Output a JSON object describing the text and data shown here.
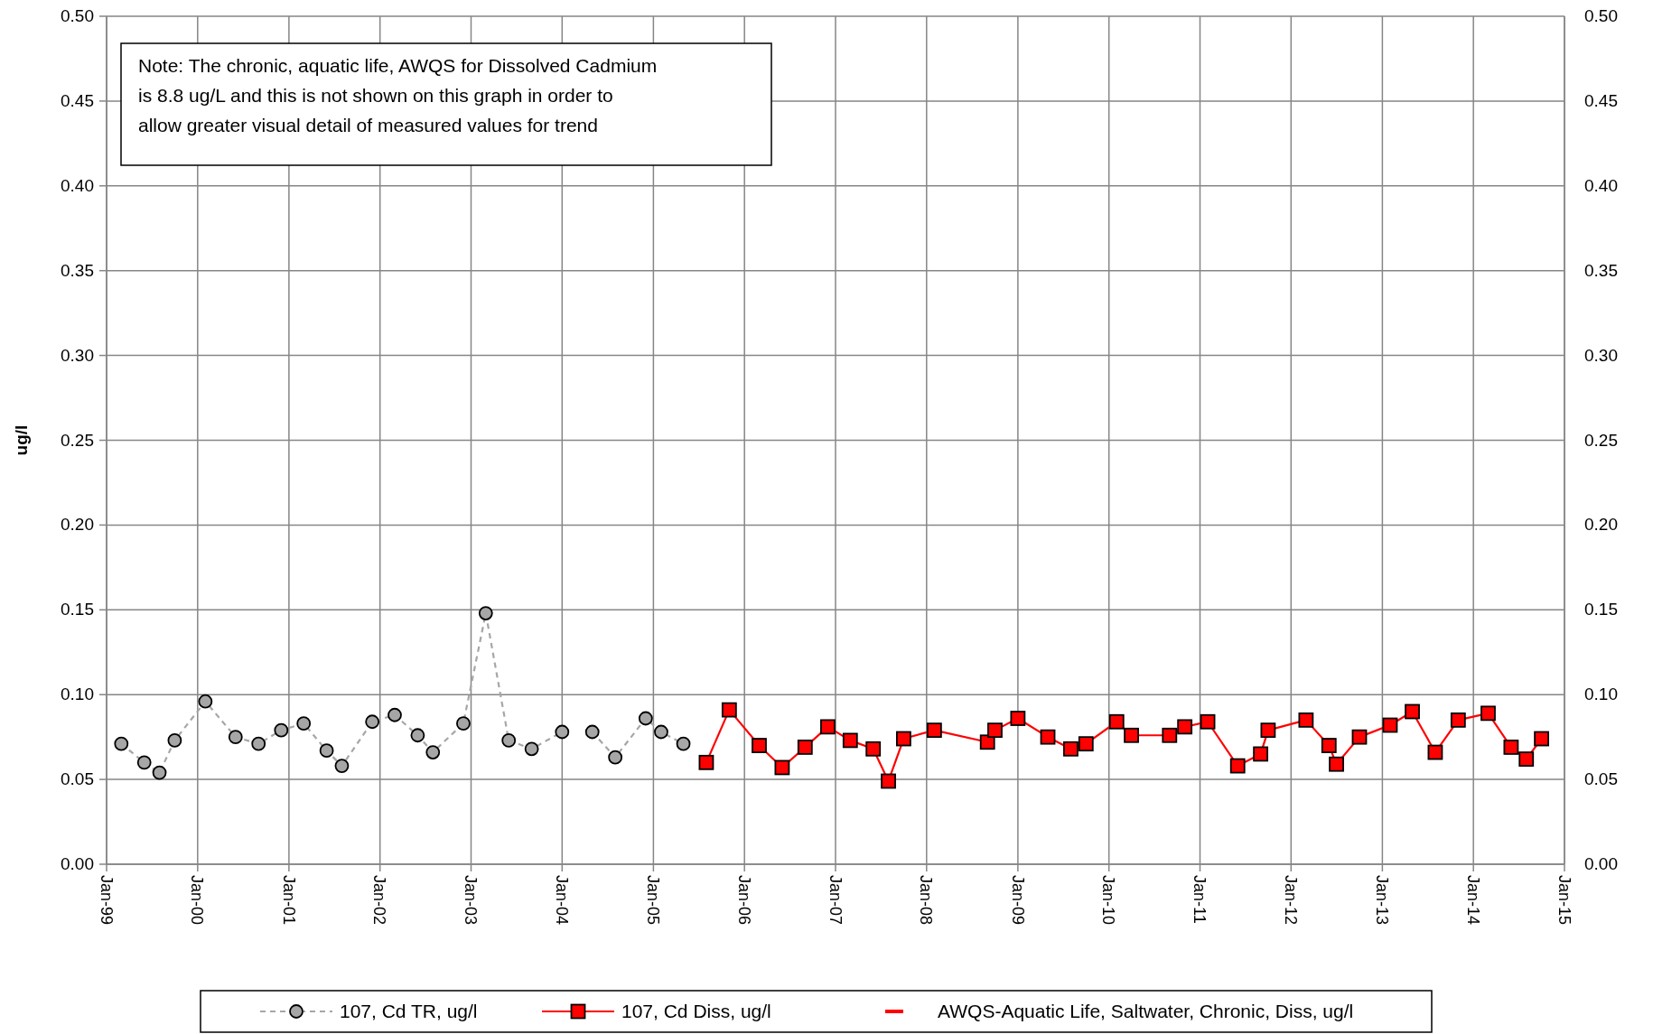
{
  "chart_data": {
    "type": "line",
    "ylabel": "ug/l",
    "annotations": [
      "Note: The chronic, aquatic life, AWQS for Dissolved Cadmium is 8.8 ug/L and this is not shown on this graph in order to allow greater visual detail of measured values for  trend"
    ],
    "xlim": [
      "1999-01",
      "2015-01"
    ],
    "xticks": [
      {
        "value": "1999-01",
        "label": "Jan-99"
      },
      {
        "value": "2000-01",
        "label": "Jan-00"
      },
      {
        "value": "2001-01",
        "label": "Jan-01"
      },
      {
        "value": "2002-01",
        "label": "Jan-02"
      },
      {
        "value": "2003-01",
        "label": "Jan-03"
      },
      {
        "value": "2004-01",
        "label": "Jan-04"
      },
      {
        "value": "2005-01",
        "label": "Jan-05"
      },
      {
        "value": "2006-01",
        "label": "Jan-06"
      },
      {
        "value": "2007-01",
        "label": "Jan-07"
      },
      {
        "value": "2008-01",
        "label": "Jan-08"
      },
      {
        "value": "2009-01",
        "label": "Jan-09"
      },
      {
        "value": "2010-01",
        "label": "Jan-10"
      },
      {
        "value": "2011-01",
        "label": "Jan-11"
      },
      {
        "value": "2012-01",
        "label": "Jan-12"
      },
      {
        "value": "2013-01",
        "label": "Jan-13"
      },
      {
        "value": "2014-01",
        "label": "Jan-14"
      },
      {
        "value": "2015-01",
        "label": "Jan-15"
      }
    ],
    "ylim": [
      0,
      0.5
    ],
    "yticks": [
      {
        "value": 0,
        "label": "0.00"
      },
      {
        "value": 0.05,
        "label": "0.05"
      },
      {
        "value": 0.1,
        "label": "0.10"
      },
      {
        "value": 0.15,
        "label": "0.15"
      },
      {
        "value": 0.2,
        "label": "0.20"
      },
      {
        "value": 0.25,
        "label": "0.25"
      },
      {
        "value": 0.3,
        "label": "0.30"
      },
      {
        "value": 0.35,
        "label": "0.35"
      },
      {
        "value": 0.4,
        "label": "0.40"
      },
      {
        "value": 0.45,
        "label": "0.45"
      },
      {
        "value": 0.5,
        "label": "0.50"
      }
    ],
    "y2lim": [
      0,
      0.5
    ],
    "y2ticks": [
      {
        "value": 0,
        "label": "0.00"
      },
      {
        "value": 0.05,
        "label": "0.05"
      },
      {
        "value": 0.1,
        "label": "0.10"
      },
      {
        "value": 0.15,
        "label": "0.15"
      },
      {
        "value": 0.2,
        "label": "0.20"
      },
      {
        "value": 0.25,
        "label": "0.25"
      },
      {
        "value": 0.3,
        "label": "0.30"
      },
      {
        "value": 0.35,
        "label": "0.35"
      },
      {
        "value": 0.4,
        "label": "0.40"
      },
      {
        "value": 0.45,
        "label": "0.45"
      },
      {
        "value": 0.5,
        "label": "0.50"
      }
    ],
    "grid": true,
    "legend": "bottom",
    "series": [
      {
        "name": "107, Cd TR, ug/l",
        "color": "#a6a6a6",
        "marker": "circle",
        "line_style": "dashed",
        "x": [
          "1999-03",
          "1999-06",
          "1999-08",
          "1999-10",
          "2000-02",
          "2000-06",
          "2000-09",
          "2000-12",
          "2001-03",
          "2001-06",
          "2001-08",
          "2001-12",
          "2002-03",
          "2002-06",
          "2002-08",
          "2002-12",
          "2003-03",
          "2003-06",
          "2003-09",
          "2004-01",
          "2004-03",
          "2004-05",
          "2004-08",
          "2004-12",
          "2005-02",
          "2005-05"
        ],
        "values": [
          0.071,
          0.06,
          0.054,
          0.073,
          0.096,
          0.075,
          0.071,
          0.079,
          0.083,
          0.067,
          0.058,
          0.084,
          0.088,
          0.076,
          0.066,
          0.083,
          0.148,
          0.073,
          0.068,
          0.078,
          null,
          0.078,
          0.063,
          0.086,
          0.078,
          0.071
        ]
      },
      {
        "name": "107, Cd Diss, ug/l",
        "color": "#ff0000",
        "marker": "square",
        "line_style": "solid",
        "x": [
          "2005-08",
          "2005-11",
          "2006-03",
          "2006-06",
          "2006-09",
          "2006-12",
          "2007-03",
          "2007-06",
          "2007-08",
          "2007-10",
          "2008-02",
          "2008-09",
          "2008-10",
          "2009-01",
          "2009-05",
          "2009-08",
          "2009-10",
          "2010-02",
          "2010-04",
          "2010-09",
          "2010-11",
          "2011-02",
          "2011-06",
          "2011-09",
          "2011-10",
          "2012-03",
          "2012-06",
          "2012-07",
          "2012-10",
          "2013-02",
          "2013-05",
          "2013-08",
          "2013-11",
          "2014-03",
          "2014-06",
          "2014-08",
          "2014-10"
        ],
        "values": [
          0.06,
          0.091,
          0.07,
          0.057,
          0.069,
          0.081,
          0.073,
          0.068,
          0.049,
          0.074,
          0.079,
          0.072,
          0.079,
          0.086,
          0.075,
          0.068,
          0.071,
          0.084,
          0.076,
          0.076,
          0.081,
          0.084,
          0.058,
          0.065,
          0.079,
          0.085,
          0.07,
          0.059,
          0.075,
          0.082,
          0.09,
          0.066,
          0.085,
          0.089,
          0.069,
          0.062,
          0.074
        ]
      },
      {
        "name": "AWQS-Aquatic Life, Saltwater, Chronic, Diss, ug/l",
        "color": "#ff0000",
        "marker": "none",
        "line_style": "solid"
      }
    ]
  }
}
